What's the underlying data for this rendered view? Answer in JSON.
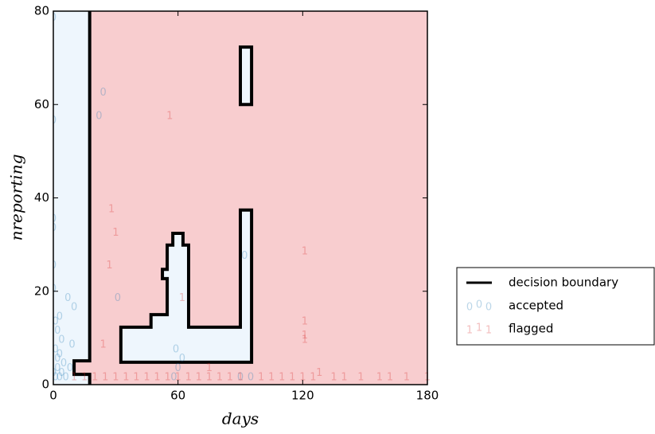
{
  "chart_data": {
    "type": "scatter",
    "xlabel": "days",
    "ylabel": "nreporting",
    "xlim": [
      0,
      180
    ],
    "ylim": [
      0,
      80
    ],
    "xticks": [
      0,
      60,
      120,
      180
    ],
    "yticks": [
      0,
      20,
      40,
      60,
      80
    ],
    "background_color": "#f8cdcf",
    "boundary": {
      "name": "decision boundary",
      "color": "#000000",
      "fill": "#eef6fd",
      "regions": [
        {
          "closed": false,
          "x": [
            17.5,
            17.5,
            10,
            10,
            17.5,
            17.5
          ],
          "y": [
            80,
            5.1,
            5.1,
            2.2,
            2.2,
            0
          ]
        },
        {
          "closed": true,
          "x": [
            90,
            95.4,
            95.4,
            90
          ],
          "y": [
            72.3,
            72.3,
            60,
            60
          ]
        },
        {
          "closed": true,
          "x": [
            32.5,
            32.5,
            47,
            47,
            54.8,
            54.8,
            52.5,
            52.5,
            54.8,
            54.8,
            57.5,
            57.5,
            62.4,
            62.4,
            65.1,
            65.1,
            90,
            90,
            95.4,
            95.4
          ],
          "y": [
            4.8,
            12.3,
            12.3,
            15,
            15,
            22.7,
            22.7,
            24.7,
            24.7,
            29.9,
            29.9,
            32.4,
            32.4,
            29.9,
            29.9,
            12.3,
            12.3,
            37.4,
            37.4,
            4.8
          ]
        }
      ]
    },
    "legend": "right",
    "series": [
      {
        "name": "accepted",
        "marker": "0",
        "color": "#1f77b4",
        "x": [
          0,
          0,
          24,
          22,
          0,
          0,
          0,
          7,
          10,
          31,
          59,
          62,
          92,
          90,
          2,
          4,
          1,
          3,
          5,
          2,
          0,
          1,
          3,
          4,
          6,
          1,
          2,
          8,
          9,
          58,
          60,
          95,
          0,
          3
        ],
        "y": [
          78,
          56,
          62,
          57,
          35,
          33,
          25,
          18,
          16,
          18,
          7,
          5,
          27,
          1,
          11,
          9,
          7,
          6,
          4,
          3,
          2,
          1,
          1,
          2,
          1,
          13,
          5,
          3,
          8,
          1,
          3,
          1,
          20,
          14
        ]
      },
      {
        "name": "flagged",
        "marker": "1",
        "color": "#d62728",
        "x": [
          56,
          28,
          30,
          27,
          24,
          62,
          121,
          121,
          121,
          121,
          75,
          128,
          10,
          15,
          20,
          25,
          30,
          35,
          40,
          45,
          50,
          55,
          60,
          65,
          70,
          75,
          80,
          85,
          90,
          100,
          105,
          110,
          115,
          120,
          125,
          135,
          140,
          148,
          157,
          162,
          170,
          180
        ],
        "y": [
          57,
          37,
          32,
          25,
          8,
          18,
          28,
          13,
          10,
          9,
          3,
          2,
          1,
          1,
          1,
          1,
          1,
          1,
          1,
          1,
          1,
          1,
          1,
          1,
          1,
          1,
          1,
          1,
          1,
          1,
          1,
          1,
          1,
          1,
          1,
          1,
          1,
          1,
          1,
          1,
          1,
          1
        ]
      }
    ]
  }
}
